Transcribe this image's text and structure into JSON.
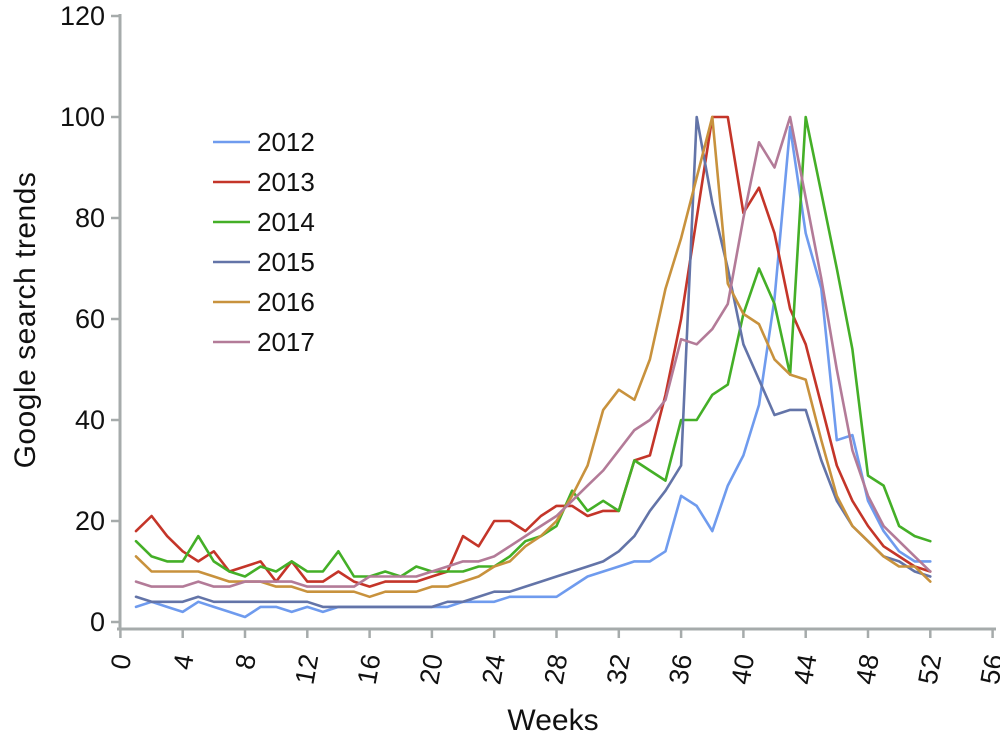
{
  "chart_data": {
    "type": "line",
    "title": "",
    "xlabel": "Weeks",
    "ylabel": "Google search trends",
    "x_start_week": 1,
    "xlim": [
      0,
      56
    ],
    "ylim": [
      0,
      120
    ],
    "x_ticks": [
      0,
      4,
      8,
      12,
      16,
      20,
      24,
      28,
      32,
      36,
      40,
      44,
      48,
      52,
      56
    ],
    "y_ticks": [
      0,
      20,
      40,
      60,
      80,
      100,
      120
    ],
    "grid": false,
    "legend_position": "inside-upper-left",
    "axis_color": "#a6abab",
    "text_color": "#111111",
    "series": [
      {
        "name": "2012",
        "color": "#6f9bee",
        "values": [
          3,
          4,
          3,
          2,
          4,
          3,
          2,
          1,
          3,
          3,
          2,
          3,
          2,
          3,
          3,
          3,
          3,
          3,
          3,
          3,
          3,
          4,
          4,
          4,
          5,
          5,
          5,
          5,
          7,
          9,
          10,
          11,
          12,
          12,
          14,
          25,
          23,
          18,
          27,
          33,
          43,
          64,
          98,
          77,
          66,
          36,
          37,
          24,
          18,
          14,
          12,
          12
        ]
      },
      {
        "name": "2013",
        "color": "#c43529",
        "values": [
          18,
          21,
          17,
          14,
          12,
          14,
          10,
          11,
          12,
          8,
          12,
          8,
          8,
          10,
          8,
          7,
          8,
          8,
          8,
          9,
          10,
          17,
          15,
          20,
          20,
          18,
          21,
          23,
          23,
          21,
          22,
          22,
          32,
          33,
          45,
          60,
          80,
          100,
          100,
          81,
          86,
          77,
          62,
          55,
          43,
          31,
          24,
          19,
          15,
          13,
          11,
          10
        ]
      },
      {
        "name": "2014",
        "color": "#44af27",
        "values": [
          16,
          13,
          12,
          12,
          17,
          12,
          10,
          9,
          11,
          10,
          12,
          10,
          10,
          14,
          9,
          9,
          10,
          9,
          11,
          10,
          10,
          10,
          11,
          11,
          13,
          16,
          17,
          19,
          26,
          22,
          24,
          22,
          32,
          30,
          28,
          40,
          40,
          45,
          47,
          61,
          70,
          63,
          49,
          100,
          85,
          70,
          54,
          29,
          27,
          19,
          17,
          16
        ]
      },
      {
        "name": "2015",
        "color": "#6374a8",
        "values": [
          5,
          4,
          4,
          4,
          5,
          4,
          4,
          4,
          4,
          4,
          4,
          4,
          3,
          3,
          3,
          3,
          3,
          3,
          3,
          3,
          4,
          4,
          5,
          6,
          6,
          7,
          8,
          9,
          10,
          11,
          12,
          14,
          17,
          22,
          26,
          31,
          100,
          83,
          70,
          55,
          48,
          41,
          42,
          42,
          32,
          24,
          19,
          16,
          13,
          12,
          10,
          9
        ]
      },
      {
        "name": "2016",
        "color": "#c8923d",
        "values": [
          13,
          10,
          10,
          10,
          10,
          9,
          8,
          8,
          8,
          7,
          7,
          6,
          6,
          6,
          6,
          5,
          6,
          6,
          6,
          7,
          7,
          8,
          9,
          11,
          12,
          15,
          17,
          20,
          25,
          31,
          42,
          46,
          44,
          52,
          66,
          76,
          88,
          100,
          67,
          61,
          59,
          52,
          49,
          48,
          36,
          25,
          19,
          16,
          13,
          11,
          11,
          8
        ]
      },
      {
        "name": "2017",
        "color": "#b37b98",
        "values": [
          8,
          7,
          7,
          7,
          8,
          7,
          7,
          8,
          8,
          8,
          8,
          7,
          7,
          7,
          7,
          9,
          9,
          9,
          9,
          10,
          11,
          12,
          12,
          13,
          15,
          17,
          19,
          21,
          24,
          27,
          30,
          34,
          38,
          40,
          44,
          56,
          55,
          58,
          63,
          80,
          95,
          90,
          100,
          84,
          68,
          50,
          34,
          25,
          19,
          16,
          13,
          10
        ]
      }
    ]
  }
}
